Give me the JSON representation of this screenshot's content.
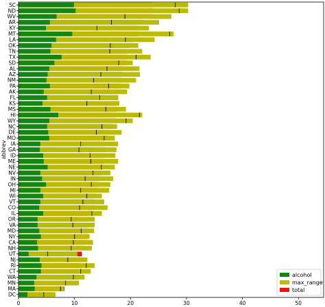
{
  "chart_data": {
    "type": "bar",
    "orientation": "horizontal",
    "stacking": "overlay",
    "ylabel": "abbrev",
    "xlabel": "",
    "xlim": [
      0,
      54.5
    ],
    "xticks": [
      0,
      10,
      20,
      30,
      40,
      50
    ],
    "grid": false,
    "legend_position": "lower-right",
    "categories": [
      "SC",
      "ND",
      "WV",
      "AR",
      "KY",
      "MT",
      "LA",
      "OK",
      "TN",
      "TX",
      "SD",
      "AL",
      "AZ",
      "NM",
      "PA",
      "AK",
      "FL",
      "KS",
      "MS",
      "HI",
      "WY",
      "NC",
      "DE",
      "MO",
      "IA",
      "GA",
      "ID",
      "ME",
      "NE",
      "NV",
      "IN",
      "OH",
      "MI",
      "WI",
      "VT",
      "CO",
      "IL",
      "OR",
      "VA",
      "MD",
      "NY",
      "CA",
      "NH",
      "UT",
      "NJ",
      "RI",
      "CT",
      "WA",
      "MN",
      "MA",
      "DC"
    ],
    "series": [
      {
        "name": "total",
        "color": "#ee1111",
        "values": [
          23.9,
          23.9,
          23.8,
          22.4,
          21.4,
          21.4,
          20.5,
          19.9,
          19.5,
          19.4,
          19.4,
          18.8,
          18.6,
          18.4,
          18.2,
          18.1,
          17.8,
          17.5,
          17.6,
          17.5,
          17.4,
          16.8,
          16.2,
          16.1,
          15.3,
          15.6,
          15.3,
          15.1,
          15.1,
          14.7,
          14.5,
          14.1,
          14.1,
          13.8,
          13.6,
          13.6,
          12.8,
          12.8,
          12.7,
          12.5,
          12.3,
          12.0,
          11.6,
          11.3,
          11.2,
          11.1,
          10.8,
          10.6,
          10.6,
          8.2,
          5.9
        ]
      },
      {
        "name": "max_range",
        "color": "#bbbb00",
        "values": [
          30.3,
          30.3,
          27.3,
          25.1,
          23.3,
          27.7,
          24.3,
          21.4,
          22.1,
          23.6,
          20.4,
          21.6,
          21.7,
          21.0,
          19.8,
          19.4,
          17.8,
          18.0,
          19.2,
          22.1,
          20.4,
          17.6,
          18.4,
          17.2,
          17.8,
          17.5,
          17.3,
          17.8,
          17.2,
          16.4,
          16.9,
          16.4,
          16.2,
          14.9,
          15.3,
          15.9,
          14.9,
          13.6,
          13.6,
          13.5,
          12.7,
          13.3,
          13.1,
          10.5,
          12.3,
          13.6,
          12.9,
          11.8,
          10.8,
          8.1,
          6.6
        ]
      },
      {
        "name": "alcohol",
        "color": "#118811",
        "values": [
          9.9,
          10.2,
          6.8,
          5.6,
          4.9,
          9.6,
          6.7,
          5.9,
          5.7,
          7.7,
          6.4,
          5.5,
          5.2,
          5.0,
          5.6,
          4.5,
          5.1,
          4.3,
          5.7,
          7.1,
          5.5,
          5.1,
          5.3,
          5.5,
          3.9,
          3.8,
          4.4,
          4.5,
          5.2,
          3.9,
          4.2,
          4.9,
          3.9,
          4.4,
          3.9,
          3.7,
          4.4,
          3.4,
          3.4,
          3.7,
          4.0,
          3.3,
          3.5,
          1.8,
          3.8,
          4.1,
          4.0,
          3.2,
          2.8,
          2.9,
          1.6
        ]
      }
    ],
    "markers": [
      28.0,
      28.7,
      19.0,
      16.6,
      14.0,
      27.0,
      19.1,
      16.4,
      16.3,
      21.0,
      17.9,
      15.8,
      14.7,
      13.4,
      16.1,
      13.0,
      14.5,
      12.2,
      15.6,
      21.6,
      19.2,
      14.9,
      13.9,
      15.3,
      11.1,
      10.8,
      12.8,
      12.9,
      14.8,
      13.3,
      11.9,
      13.0,
      11.1,
      12.2,
      11.5,
      10.9,
      13.1,
      9.4,
      9.7,
      11.2,
      10.0,
      9.8,
      9.4,
      5.2,
      8.8,
      12.1,
      11.1,
      9.8,
      8.4,
      7.5,
      4.5
    ]
  }
}
